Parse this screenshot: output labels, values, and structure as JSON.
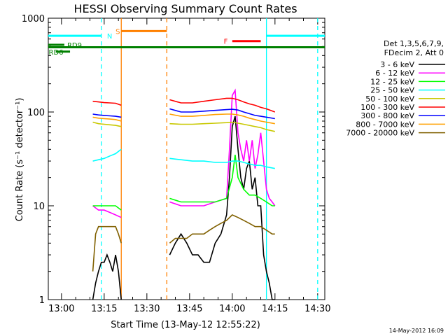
{
  "chart_data": {
    "type": "line",
    "title": "HESSI Observing Summary Count Rates",
    "xlabel": "Start Time (13-May-12 12:55:22)",
    "ylabel": "Count Rate (s⁻¹ detector⁻¹)",
    "yscale": "log",
    "ylim": [
      1,
      1000
    ],
    "xlim": [
      "12:55:22",
      "14:32:30"
    ],
    "x_ticks": [
      "13:00",
      "13:15",
      "13:30",
      "13:45",
      "14:00",
      "14:15",
      "14:30"
    ],
    "y_ticks": [
      "1",
      "10",
      "100",
      "1000"
    ],
    "timestamp": "14-May-2012 16:09",
    "legend_header": [
      "Det 1,3,5,6,7,9,",
      "FDecim 2, Att 0"
    ],
    "legend_position": "right",
    "series": [
      {
        "name": "3 - 6 keV",
        "color": "#000000",
        "segments": [
          {
            "x": [
              "13:11",
              "13:12",
              "13:13",
              "13:14",
              "13:15",
              "13:16",
              "13:17",
              "13:18",
              "13:19",
              "13:20",
              "13:21"
            ],
            "y": [
              1,
              1.5,
              2,
              2.5,
              2.5,
              3,
              2.5,
              2,
              3,
              2,
              1
            ]
          },
          {
            "x": [
              "13:38",
              "13:40",
              "13:42",
              "13:44",
              "13:46",
              "13:48",
              "13:50",
              "13:52",
              "13:54",
              "13:56",
              "13:58",
              "13:59",
              "14:00",
              "14:01",
              "14:02",
              "14:03",
              "14:04",
              "14:05",
              "14:06",
              "14:07",
              "14:08",
              "14:09",
              "14:10",
              "14:11",
              "14:12",
              "14:13",
              "14:14",
              "14:15"
            ],
            "y": [
              3,
              4,
              5,
              4,
              3,
              3,
              2.5,
              2.5,
              4,
              5,
              8,
              20,
              70,
              90,
              40,
              20,
              15,
              25,
              30,
              15,
              20,
              10,
              10,
              3,
              2,
              1.5,
              1,
              1
            ]
          }
        ]
      },
      {
        "name": "6 - 12 keV",
        "color": "#ff00ff",
        "segments": [
          {
            "x": [
              "13:11",
              "13:13",
              "13:15",
              "13:17",
              "13:19",
              "13:21"
            ],
            "y": [
              10,
              9,
              9,
              8.5,
              8,
              7.5
            ]
          },
          {
            "x": [
              "13:38",
              "13:42",
              "13:46",
              "13:50",
              "13:54",
              "13:58",
              "13:59",
              "14:00",
              "14:01",
              "14:02",
              "14:03",
              "14:04",
              "14:05",
              "14:06",
              "14:07",
              "14:08",
              "14:09",
              "14:10",
              "14:11",
              "14:12",
              "14:13",
              "14:14",
              "14:15"
            ],
            "y": [
              11,
              10,
              10,
              10,
              11,
              12,
              40,
              150,
              170,
              60,
              40,
              30,
              50,
              30,
              50,
              25,
              35,
              60,
              30,
              15,
              12,
              11,
              10
            ]
          }
        ]
      },
      {
        "name": "12 - 25 keV",
        "color": "#00ff00",
        "segments": [
          {
            "x": [
              "13:11",
              "13:13",
              "13:15",
              "13:17",
              "13:19",
              "13:21"
            ],
            "y": [
              10,
              10,
              10,
              10,
              10,
              9
            ]
          },
          {
            "x": [
              "13:38",
              "13:42",
              "13:46",
              "13:50",
              "13:54",
              "13:58",
              "14:00",
              "14:01",
              "14:02",
              "14:04",
              "14:06",
              "14:08",
              "14:10",
              "14:12",
              "14:14",
              "14:15"
            ],
            "y": [
              12,
              11,
              11,
              11,
              11,
              12,
              20,
              35,
              20,
              15,
              13,
              13,
              12,
              11,
              10,
              10
            ]
          }
        ]
      },
      {
        "name": "25 - 50 keV",
        "color": "#00ffff",
        "segments": [
          {
            "x": [
              "13:11",
              "13:13",
              "13:15",
              "13:17",
              "13:19",
              "13:21"
            ],
            "y": [
              30,
              31,
              32,
              34,
              36,
              40
            ]
          },
          {
            "x": [
              "13:38",
              "13:42",
              "13:46",
              "13:50",
              "13:54",
              "13:58",
              "14:00",
              "14:02",
              "14:04",
              "14:06",
              "14:08",
              "14:10",
              "14:12",
              "14:15"
            ],
            "y": [
              32,
              31,
              30,
              30,
              29,
              29,
              30,
              30,
              29,
              28,
              27,
              27,
              26,
              25
            ]
          }
        ]
      },
      {
        "name": "50 - 100 keV",
        "color": "#c8c800",
        "segments": [
          {
            "x": [
              "13:11",
              "13:13",
              "13:15",
              "13:17",
              "13:19",
              "13:21"
            ],
            "y": [
              78,
              75,
              74,
              73,
              72,
              70
            ]
          },
          {
            "x": [
              "13:38",
              "13:42",
              "13:46",
              "13:50",
              "13:54",
              "13:58",
              "14:00",
              "14:02",
              "14:04",
              "14:06",
              "14:08",
              "14:10",
              "14:12",
              "14:15"
            ],
            "y": [
              75,
              74,
              74,
              75,
              76,
              77,
              78,
              76,
              74,
              72,
              70,
              68,
              65,
              62
            ]
          }
        ]
      },
      {
        "name": "100 - 300 keV",
        "color": "#ff0000",
        "segments": [
          {
            "x": [
              "13:11",
              "13:13",
              "13:15",
              "13:17",
              "13:19",
              "13:21"
            ],
            "y": [
              130,
              128,
              126,
              125,
              124,
              118
            ]
          },
          {
            "x": [
              "13:38",
              "13:42",
              "13:46",
              "13:50",
              "13:54",
              "13:58",
              "14:00",
              "14:02",
              "14:04",
              "14:06",
              "14:08",
              "14:10",
              "14:12",
              "14:15"
            ],
            "y": [
              135,
              125,
              125,
              130,
              135,
              140,
              140,
              135,
              128,
              122,
              118,
              112,
              108,
              100
            ]
          }
        ]
      },
      {
        "name": "300 - 800 keV",
        "color": "#0000ff",
        "segments": [
          {
            "x": [
              "13:11",
              "13:13",
              "13:15",
              "13:17",
              "13:19",
              "13:21"
            ],
            "y": [
              95,
              93,
              92,
              91,
              90,
              88
            ]
          },
          {
            "x": [
              "13:38",
              "13:42",
              "13:46",
              "13:50",
              "13:54",
              "13:58",
              "14:00",
              "14:02",
              "14:04",
              "14:06",
              "14:08",
              "14:10",
              "14:12",
              "14:15"
            ],
            "y": [
              108,
              100,
              100,
              102,
              104,
              106,
              107,
              105,
              100,
              96,
              92,
              90,
              88,
              85
            ]
          }
        ]
      },
      {
        "name": "800 - 7000 keV",
        "color": "#ffa000",
        "segments": [
          {
            "x": [
              "13:11",
              "13:13",
              "13:15",
              "13:17",
              "13:19",
              "13:21"
            ],
            "y": [
              88,
              86,
              85,
              84,
              83,
              80
            ]
          },
          {
            "x": [
              "13:38",
              "13:42",
              "13:46",
              "13:50",
              "13:54",
              "13:58",
              "14:00",
              "14:02",
              "14:04",
              "14:06",
              "14:08",
              "14:10",
              "14:12",
              "14:15"
            ],
            "y": [
              95,
              90,
              90,
              92,
              94,
              95,
              95,
              93,
              90,
              86,
              83,
              80,
              78,
              75
            ]
          }
        ]
      },
      {
        "name": "7000 - 20000 keV",
        "color": "#806000",
        "segments": [
          {
            "x": [
              "13:11",
              "13:12",
              "13:13",
              "13:15",
              "13:17",
              "13:19",
              "13:20",
              "13:21"
            ],
            "y": [
              2,
              5,
              6,
              6,
              6,
              6,
              5,
              4
            ]
          },
          {
            "x": [
              "13:38",
              "13:40",
              "13:42",
              "13:44",
              "13:46",
              "13:48",
              "13:50",
              "13:52",
              "13:54",
              "13:56",
              "13:58",
              "14:00",
              "14:02",
              "14:04",
              "14:06",
              "14:08",
              "14:10",
              "14:12",
              "14:14",
              "14:15"
            ],
            "y": [
              4,
              4.5,
              4.5,
              4.5,
              5,
              5,
              5,
              5.5,
              6,
              6.5,
              7,
              8,
              7.5,
              7,
              6.5,
              6,
              6,
              5.5,
              5,
              5
            ]
          }
        ]
      }
    ],
    "vertical_markers": [
      {
        "time": "13:14",
        "color": "#00ffff",
        "style": "dashed"
      },
      {
        "time": "13:21",
        "color": "#ff8000",
        "style": "solid"
      },
      {
        "time": "13:37",
        "color": "#ff8000",
        "style": "dashed"
      },
      {
        "time": "14:12",
        "color": "#00ffff",
        "style": "solid"
      },
      {
        "time": "14:30",
        "color": "#00ffff",
        "style": "dashed"
      }
    ],
    "flag_bars": [
      {
        "label": "N",
        "color": "#00ffff",
        "y": 650,
        "segments": [
          [
            "12:55:22",
            "13:14"
          ],
          [
            "14:12",
            "14:32:30"
          ]
        ],
        "label_at": "13:16"
      },
      {
        "label": "S",
        "color": "#ff8000",
        "y": 730,
        "segments": [
          [
            "13:21",
            "13:37"
          ]
        ],
        "label_at": "13:19"
      },
      {
        "label": "F",
        "color": "#ff0000",
        "y": 570,
        "segments": [
          [
            "14:00",
            "14:10"
          ]
        ],
        "label_at": "13:57"
      },
      {
        "label": "",
        "color": "#008000",
        "y": 490,
        "segments": [
          [
            "12:55:22",
            "14:32:30"
          ]
        ]
      },
      {
        "label": "RD9",
        "color": "#008000",
        "y": 520,
        "segments": [
          [
            "12:55:22",
            "13:01"
          ]
        ],
        "label_at": "13:02"
      },
      {
        "label": "RD6",
        "color": "#008000",
        "y": 440,
        "segments": [
          [
            "12:58",
            "13:03"
          ]
        ],
        "label_at": "12:55:30"
      }
    ]
  }
}
